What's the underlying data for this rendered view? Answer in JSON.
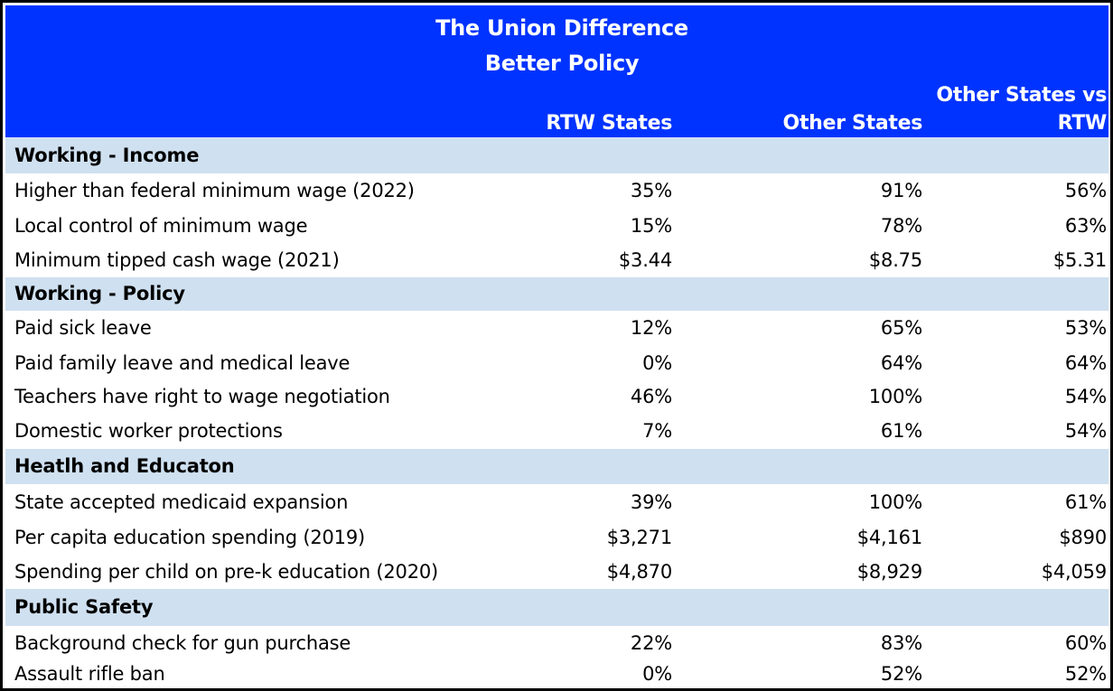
{
  "chart_data": {
    "type": "table",
    "title": "The Union Difference",
    "subtitle": "Better Policy",
    "columns": [
      "RTW States",
      "Other States",
      "Other States vs RTW"
    ],
    "column_header_lines": [
      [
        "RTW States"
      ],
      [
        "Other States"
      ],
      [
        "Other States vs",
        "RTW"
      ]
    ],
    "rows": [
      {
        "type": "section",
        "label": "Working - Income"
      },
      {
        "type": "data",
        "label": "Higher than federal minimum wage (2022)",
        "values": [
          "35%",
          "91%",
          "56%"
        ]
      },
      {
        "type": "data",
        "label": "Local control of minimum wage",
        "values": [
          "15%",
          "78%",
          "63%"
        ]
      },
      {
        "type": "data",
        "label": "Minimum tipped cash wage (2021)",
        "values": [
          "$3.44",
          "$8.75",
          "$5.31"
        ]
      },
      {
        "type": "section",
        "label": "Working - Policy"
      },
      {
        "type": "data",
        "label": "Paid sick leave",
        "values": [
          "12%",
          "65%",
          "53%"
        ]
      },
      {
        "type": "data",
        "label": "Paid family leave and medical leave",
        "values": [
          "0%",
          "64%",
          "64%"
        ]
      },
      {
        "type": "data",
        "label": "Teachers have right to wage negotiation",
        "values": [
          "46%",
          "100%",
          "54%"
        ]
      },
      {
        "type": "data",
        "label": "Domestic worker protections",
        "values": [
          "7%",
          "61%",
          "54%"
        ]
      },
      {
        "type": "section",
        "label": "Heatlh and Educaton"
      },
      {
        "type": "data",
        "label": "State accepted medicaid expansion",
        "values": [
          "39%",
          "100%",
          "61%"
        ]
      },
      {
        "type": "data",
        "label": "Per capita education spending (2019)",
        "values": [
          "$3,271",
          "$4,161",
          "$890"
        ]
      },
      {
        "type": "data",
        "label": "Spending per child on pre-k education (2020)",
        "values": [
          "$4,870",
          "$8,929",
          "$4,059"
        ]
      },
      {
        "type": "section",
        "label": "Public Safety"
      },
      {
        "type": "data",
        "label": "Background check for gun purchase",
        "values": [
          "22%",
          "83%",
          "60%"
        ]
      },
      {
        "type": "data",
        "label": "Assault rifle ban",
        "values": [
          "0%",
          "52%",
          "52%"
        ]
      }
    ]
  },
  "colors": {
    "header_bg": "#0033ff",
    "header_text": "#ffffff",
    "section_bg": "#cfe0f0",
    "row_bg": "#ffffff",
    "border": "#000000"
  }
}
